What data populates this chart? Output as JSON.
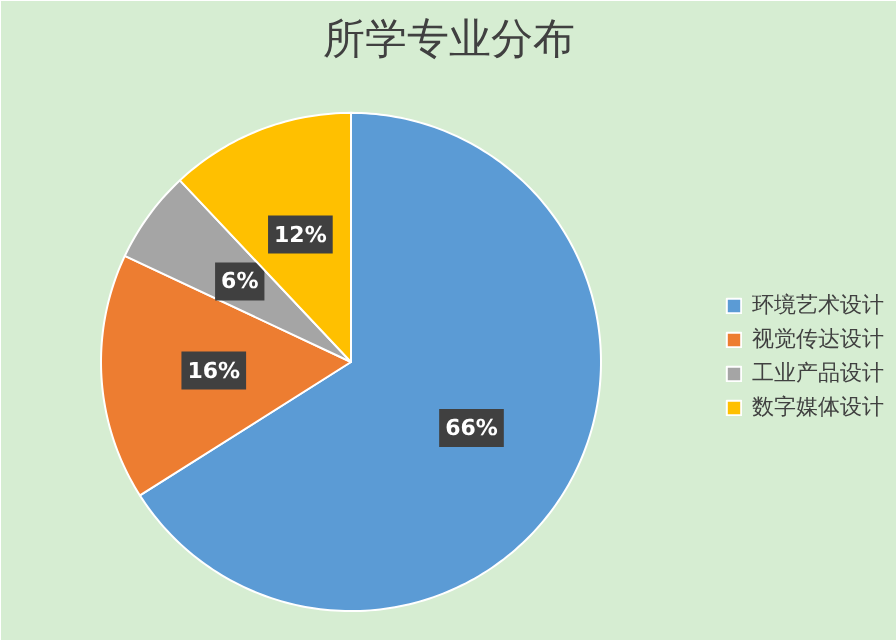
{
  "chart_data": {
    "type": "pie",
    "title": "所学专业分布",
    "categories": [
      "环境艺术设计",
      "视觉传达设计",
      "工业产品设计",
      "数字媒体设计"
    ],
    "values": [
      66,
      16,
      6,
      12
    ],
    "colors": [
      "#5b9bd5",
      "#ed7d31",
      "#a5a5a5",
      "#ffc000"
    ],
    "value_labels": [
      "66%",
      "16%",
      "6%",
      "12%"
    ],
    "legend": "right"
  }
}
